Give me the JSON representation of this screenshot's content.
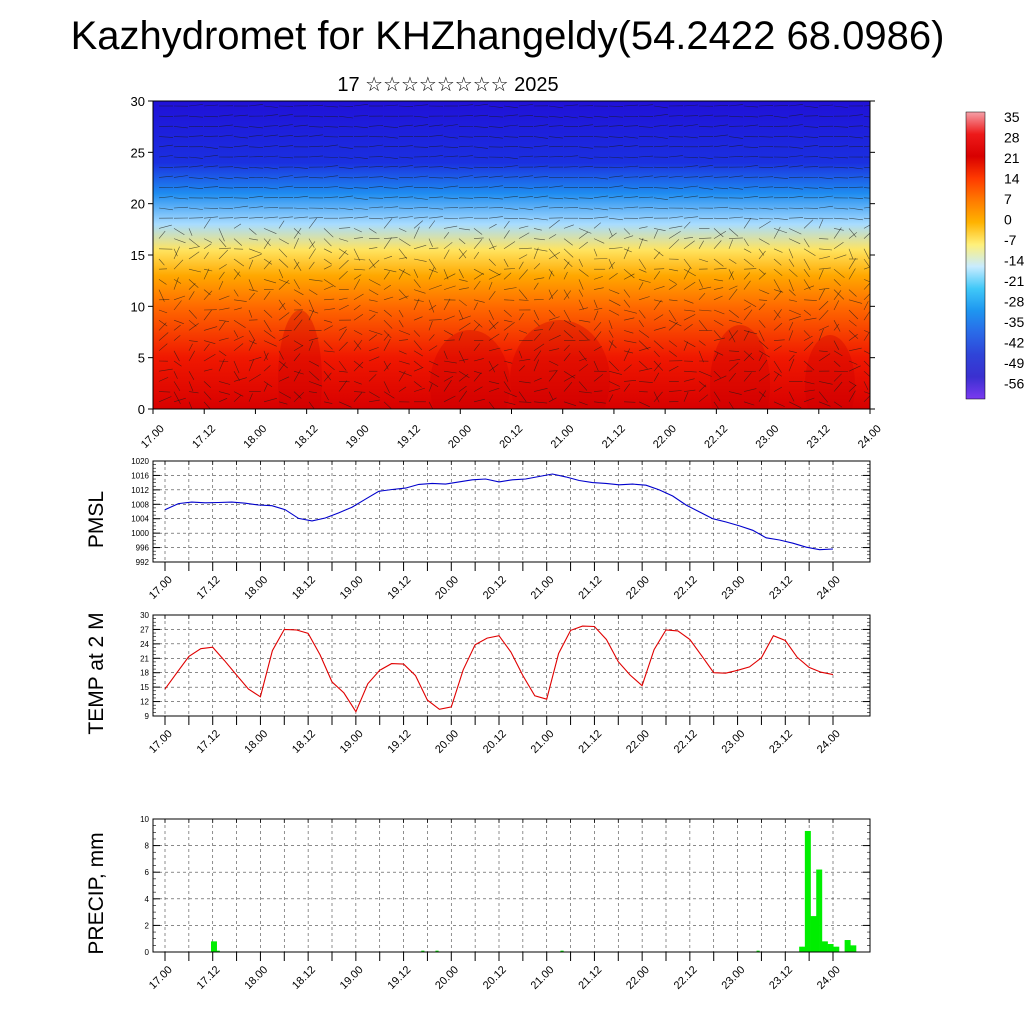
{
  "title": "Kazhydromet for KHZhangeldy(54.2422 68.0986)",
  "subtitle": "17 ☆☆☆☆☆☆☆☆ 2025",
  "time_ticks": [
    "17.00",
    "17.12",
    "18.00",
    "18.12",
    "19.00",
    "19.12",
    "20.00",
    "20.12",
    "21.00",
    "21.12",
    "22.00",
    "22.12",
    "23.00",
    "23.12",
    "24.00"
  ],
  "colors": {
    "pmsl_line": "#0000cc",
    "temp_line": "#e00000",
    "precip_bar": "#00ee00",
    "grid": "#444444"
  },
  "chart_data": [
    {
      "id": "cross-section",
      "type": "heatmap",
      "title": "",
      "xlabel": "",
      "ylabel": "",
      "ylim": [
        0,
        30
      ],
      "yticks": [
        "0",
        "5",
        "10",
        "15",
        "20",
        "25",
        "30"
      ],
      "colorbar": {
        "labels": [
          "35",
          "28",
          "21",
          "14",
          "7",
          "0",
          "-7",
          "-14",
          "-21",
          "-28",
          "-35",
          "-42",
          "-49",
          "-56"
        ],
        "colors": [
          "#f5a0a8",
          "#ee1a1a",
          "#d80000",
          "#ff3a00",
          "#ff7a00",
          "#ffb300",
          "#fff07a",
          "#c8ecff",
          "#40c8f8",
          "#1e96f0",
          "#2a6ae8",
          "#2f44d8",
          "#3a30d0",
          "#7a3af0"
        ]
      },
      "field_profile": [
        {
          "level": 0,
          "color": "#d80000"
        },
        {
          "level": 5,
          "color": "#f01800"
        },
        {
          "level": 10,
          "color": "#ff6a00"
        },
        {
          "level": 13,
          "color": "#ffa800"
        },
        {
          "level": 15.5,
          "color": "#ffe460"
        },
        {
          "level": 18,
          "color": "#a8dcff"
        },
        {
          "level": 21,
          "color": "#1e8cf0"
        },
        {
          "level": 24,
          "color": "#1a30e0"
        },
        {
          "level": 30,
          "color": "#2010d8"
        }
      ],
      "vector_field": "wind barbs (many small arrows)"
    },
    {
      "id": "pmsl",
      "type": "line",
      "ylabel": "PMSL",
      "ylim": [
        992,
        1020
      ],
      "yticks": [
        "992",
        "996",
        "1000",
        "1004",
        "1008",
        "1012",
        "1016",
        "1020"
      ],
      "series": [
        {
          "values": [
            1006.5,
            1008.2,
            1008.6,
            1008.4,
            1008.5,
            1008.6,
            1008.3,
            1007.8,
            1007.6,
            1006.5,
            1004.1,
            1003.4,
            1004.2,
            1005.6,
            1007.2,
            1009.4,
            1011.6,
            1012.1,
            1012.5,
            1013.5,
            1013.8,
            1013.6,
            1014.2,
            1014.8,
            1015.0,
            1014.2,
            1014.8,
            1015.0,
            1015.7,
            1016.4,
            1015.6,
            1014.6,
            1014.0,
            1013.8,
            1013.4,
            1013.6,
            1013.3,
            1012.0,
            1010.3,
            1007.8,
            1005.9,
            1004.0,
            1003.1,
            1002.0,
            1000.8,
            998.7,
            998.1,
            997.2,
            996.1,
            995.4,
            995.6
          ]
        }
      ]
    },
    {
      "id": "temp2m",
      "type": "line",
      "ylabel": "TEMP at 2 M",
      "ylim": [
        9,
        30
      ],
      "yticks": [
        "9",
        "12",
        "15",
        "18",
        "21",
        "24",
        "27",
        "30"
      ],
      "series": [
        {
          "values": [
            14.6,
            18.0,
            21.4,
            23.0,
            23.3,
            20.5,
            17.5,
            14.6,
            13.0,
            22.6,
            27.0,
            26.9,
            26.2,
            21.7,
            16.1,
            13.8,
            9.9,
            15.7,
            18.5,
            19.9,
            19.8,
            17.4,
            12.3,
            10.4,
            10.9,
            18.6,
            23.8,
            25.2,
            25.7,
            22.3,
            17.4,
            13.2,
            12.5,
            22.0,
            26.8,
            27.7,
            27.6,
            24.9,
            20.3,
            17.5,
            15.3,
            22.8,
            26.9,
            26.7,
            24.9,
            21.5,
            18.0,
            17.9,
            18.5,
            19.2,
            21.1,
            25.7,
            24.7,
            21.2,
            19.1,
            18.1,
            17.6
          ]
        }
      ]
    },
    {
      "id": "precip",
      "type": "bar",
      "ylabel": "PRECIP, mm",
      "ylim": [
        0,
        10
      ],
      "yticks": [
        "0",
        "2",
        "4",
        "6",
        "8",
        "10"
      ],
      "values": [
        0,
        0,
        0,
        0,
        0,
        0,
        0,
        0,
        0,
        0,
        0,
        0,
        0,
        0,
        0,
        0,
        0,
        0,
        0,
        0.8,
        0.8,
        0.1,
        0,
        0,
        0,
        0,
        0,
        0,
        0,
        0,
        0,
        0,
        0,
        0,
        0,
        0,
        0,
        0,
        0,
        0,
        0,
        0,
        0,
        0,
        0,
        0,
        0,
        0,
        0,
        0,
        0,
        0,
        0,
        0,
        0,
        0,
        0,
        0,
        0,
        0,
        0,
        0,
        0,
        0,
        0,
        0,
        0,
        0,
        0,
        0,
        0,
        0,
        0,
        0,
        0,
        0,
        0,
        0,
        0,
        0,
        0,
        0,
        0,
        0,
        0,
        0,
        0,
        0,
        0,
        0,
        0,
        0,
        0,
        0.1,
        0,
        0,
        0,
        0,
        0.1,
        0,
        0,
        0,
        0,
        0,
        0,
        0,
        0,
        0,
        0,
        0,
        0,
        0,
        0,
        0,
        0,
        0,
        0,
        0,
        0,
        0,
        0,
        0,
        0,
        0,
        0,
        0,
        0,
        0,
        0,
        0,
        0,
        0,
        0,
        0,
        0,
        0,
        0,
        0,
        0,
        0,
        0,
        0,
        0.1,
        0,
        0,
        0,
        0,
        0,
        0,
        0,
        0,
        0,
        0,
        0,
        0,
        0,
        0,
        0,
        0,
        0,
        0,
        0,
        0,
        0,
        0,
        0,
        0,
        0,
        0,
        0,
        0,
        0,
        0,
        0,
        0,
        0,
        0,
        0,
        0,
        0,
        0,
        0,
        0,
        0,
        0,
        0,
        0,
        0,
        0,
        0,
        0,
        0,
        0,
        0,
        0,
        0,
        0,
        0,
        0,
        0,
        0,
        0,
        0,
        0,
        0,
        0,
        0,
        0,
        0,
        0,
        0,
        0.1,
        0,
        0,
        0,
        0,
        0,
        0,
        0,
        0,
        0,
        0,
        0,
        0,
        0,
        0,
        0.4,
        0.4,
        9.1,
        9.1,
        2.7,
        2.7,
        6.2,
        6.2,
        0.8,
        0.8,
        0.6,
        0.6,
        0.4,
        0.4,
        0,
        0,
        0.9,
        0.9,
        0.5,
        0.5
      ]
    }
  ]
}
